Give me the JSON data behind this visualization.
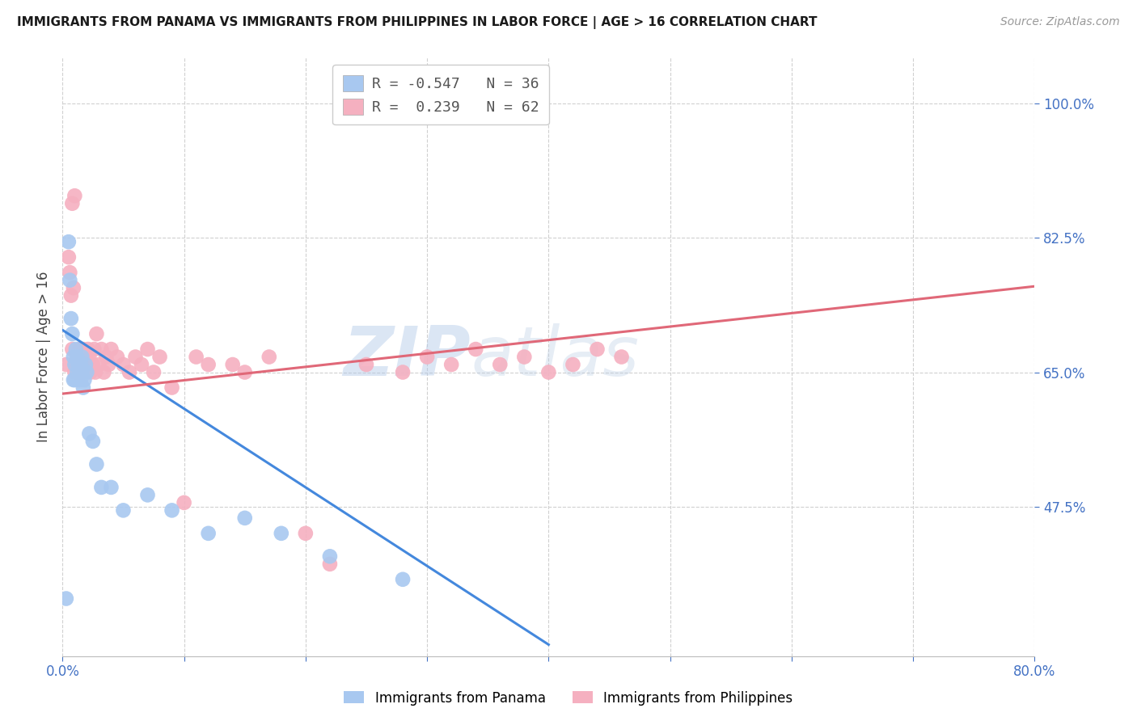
{
  "title": "IMMIGRANTS FROM PANAMA VS IMMIGRANTS FROM PHILIPPINES IN LABOR FORCE | AGE > 16 CORRELATION CHART",
  "source": "Source: ZipAtlas.com",
  "ylabel": "In Labor Force | Age > 16",
  "xlim": [
    0.0,
    0.8
  ],
  "ylim": [
    0.28,
    1.06
  ],
  "xticks": [
    0.0,
    0.1,
    0.2,
    0.3,
    0.4,
    0.5,
    0.6,
    0.7,
    0.8
  ],
  "xticklabels": [
    "0.0%",
    "",
    "",
    "",
    "",
    "",
    "",
    "",
    "80.0%"
  ],
  "yticks": [
    0.475,
    0.65,
    0.825,
    1.0
  ],
  "yticklabels": [
    "47.5%",
    "65.0%",
    "82.5%",
    "100.0%"
  ],
  "grid_color": "#d0d0d0",
  "background_color": "#ffffff",
  "panama_color": "#a8c8f0",
  "philippines_color": "#f5b0c0",
  "panama_line_color": "#4488dd",
  "philippines_line_color": "#e06878",
  "panama_R": -0.547,
  "panama_N": 36,
  "philippines_R": 0.239,
  "philippines_N": 62,
  "watermark_zip": "ZIP",
  "watermark_atlas": "atlas",
  "panama_scatter_x": [
    0.003,
    0.005,
    0.006,
    0.007,
    0.008,
    0.009,
    0.009,
    0.01,
    0.01,
    0.011,
    0.012,
    0.012,
    0.013,
    0.013,
    0.014,
    0.015,
    0.015,
    0.016,
    0.016,
    0.017,
    0.018,
    0.019,
    0.02,
    0.022,
    0.025,
    0.028,
    0.032,
    0.04,
    0.05,
    0.07,
    0.09,
    0.12,
    0.15,
    0.18,
    0.22,
    0.28
  ],
  "panama_scatter_y": [
    0.355,
    0.82,
    0.77,
    0.72,
    0.7,
    0.67,
    0.64,
    0.66,
    0.64,
    0.68,
    0.65,
    0.67,
    0.66,
    0.64,
    0.65,
    0.66,
    0.64,
    0.67,
    0.65,
    0.63,
    0.64,
    0.66,
    0.65,
    0.57,
    0.56,
    0.53,
    0.5,
    0.5,
    0.47,
    0.49,
    0.47,
    0.44,
    0.46,
    0.44,
    0.41,
    0.38
  ],
  "philippines_scatter_x": [
    0.003,
    0.005,
    0.006,
    0.007,
    0.008,
    0.008,
    0.009,
    0.01,
    0.01,
    0.011,
    0.012,
    0.013,
    0.014,
    0.014,
    0.015,
    0.015,
    0.016,
    0.017,
    0.018,
    0.019,
    0.02,
    0.021,
    0.022,
    0.023,
    0.025,
    0.026,
    0.027,
    0.028,
    0.03,
    0.032,
    0.034,
    0.036,
    0.038,
    0.04,
    0.045,
    0.05,
    0.055,
    0.06,
    0.065,
    0.07,
    0.075,
    0.08,
    0.09,
    0.1,
    0.11,
    0.12,
    0.14,
    0.15,
    0.17,
    0.2,
    0.22,
    0.25,
    0.28,
    0.3,
    0.32,
    0.34,
    0.36,
    0.38,
    0.4,
    0.42,
    0.44,
    0.46
  ],
  "philippines_scatter_y": [
    0.66,
    0.8,
    0.78,
    0.75,
    0.87,
    0.68,
    0.76,
    0.65,
    0.88,
    0.66,
    0.67,
    0.65,
    0.68,
    0.66,
    0.65,
    0.67,
    0.66,
    0.68,
    0.65,
    0.67,
    0.66,
    0.68,
    0.67,
    0.65,
    0.66,
    0.68,
    0.65,
    0.7,
    0.66,
    0.68,
    0.65,
    0.67,
    0.66,
    0.68,
    0.67,
    0.66,
    0.65,
    0.67,
    0.66,
    0.68,
    0.65,
    0.67,
    0.63,
    0.48,
    0.67,
    0.66,
    0.66,
    0.65,
    0.67,
    0.44,
    0.4,
    0.66,
    0.65,
    0.67,
    0.66,
    0.68,
    0.66,
    0.67,
    0.65,
    0.66,
    0.68,
    0.67
  ],
  "panama_trend_x0": 0.0,
  "panama_trend_x1": 0.4,
  "panama_trend_y0": 0.705,
  "panama_trend_y1": 0.295,
  "philippines_trend_x0": 0.0,
  "philippines_trend_x1": 0.8,
  "philippines_trend_y0": 0.622,
  "philippines_trend_y1": 0.762
}
